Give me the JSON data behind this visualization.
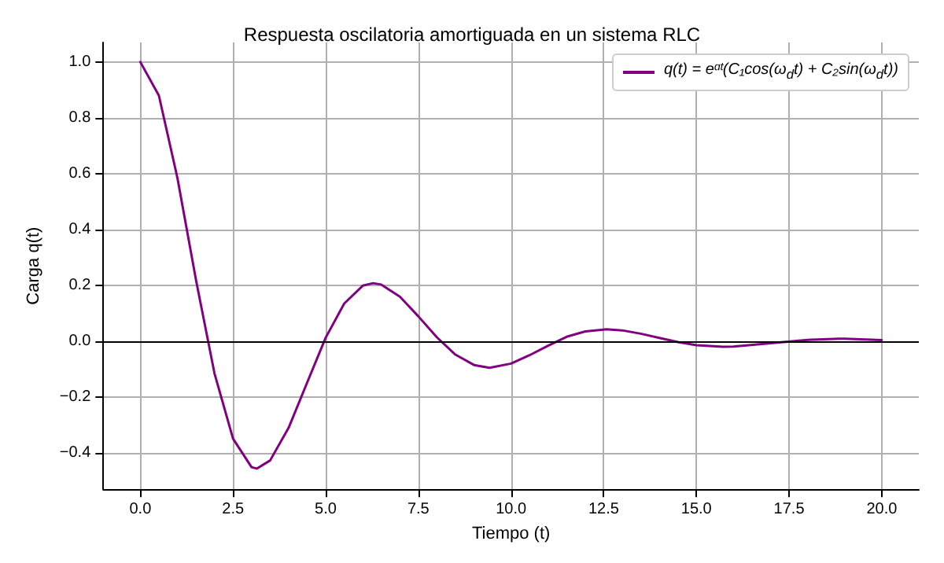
{
  "chart_data": {
    "type": "line",
    "title": "Respuesta oscilatoria amortiguada en un sistema RLC",
    "xlabel": "Tiempo (t)",
    "ylabel": "Carga q(t)",
    "x": [
      0,
      0.5,
      1,
      1.5,
      2,
      2.5,
      3,
      3.14,
      3.5,
      4,
      4.5,
      5,
      5.5,
      6,
      6.28,
      6.5,
      7,
      7.5,
      8,
      8.5,
      9,
      9.42,
      10,
      10.5,
      11,
      11.5,
      12,
      12.57,
      13,
      13.5,
      14,
      14.5,
      15,
      15.71,
      16,
      17,
      18,
      18.85,
      19,
      20
    ],
    "series": [
      {
        "name": "q(t) = eᵅᵗ(C₁cos(ω$_{d}$t) + C₂sin(ω$_{d}$t))",
        "color": "#800080",
        "values": [
          1,
          0.88,
          0.585,
          0.22,
          -0.115,
          -0.349,
          -0.451,
          -0.456,
          -0.427,
          -0.31,
          -0.148,
          0.013,
          0.135,
          0.199,
          0.208,
          0.203,
          0.16,
          0.089,
          0.014,
          -0.048,
          -0.085,
          -0.095,
          -0.08,
          -0.05,
          -0.016,
          0.016,
          0.035,
          0.043,
          0.039,
          0.027,
          0.012,
          -0.003,
          -0.014,
          -0.02,
          -0.019,
          -0.007,
          0.005,
          0.009,
          0.009,
          0.004
        ]
      }
    ],
    "xlim": [
      -1,
      21
    ],
    "xticks": [
      {
        "value": 0,
        "label": "0.0"
      },
      2.5,
      {
        "value": 5,
        "label": "5.0"
      },
      7.5,
      {
        "value": 10,
        "label": "10.0"
      },
      12.5,
      {
        "value": 15,
        "label": "15.0"
      },
      17.5,
      {
        "value": 20,
        "label": "20.0"
      }
    ],
    "ylim": [
      -0.53,
      1.07
    ],
    "yticks": [
      {
        "value": -0.4,
        "label": "−0.4"
      },
      {
        "value": -0.2,
        "label": "−0.2"
      },
      {
        "value": 0,
        "label": "0.0"
      },
      0.2,
      0.4,
      0.6,
      0.8,
      {
        "value": 1,
        "label": "1.0"
      }
    ],
    "ref_lines": [
      {
        "axis": "y",
        "value": 0,
        "color": "#000000"
      }
    ],
    "grid": true,
    "legend": "top right",
    "line_style": "solid",
    "marker": "none"
  }
}
